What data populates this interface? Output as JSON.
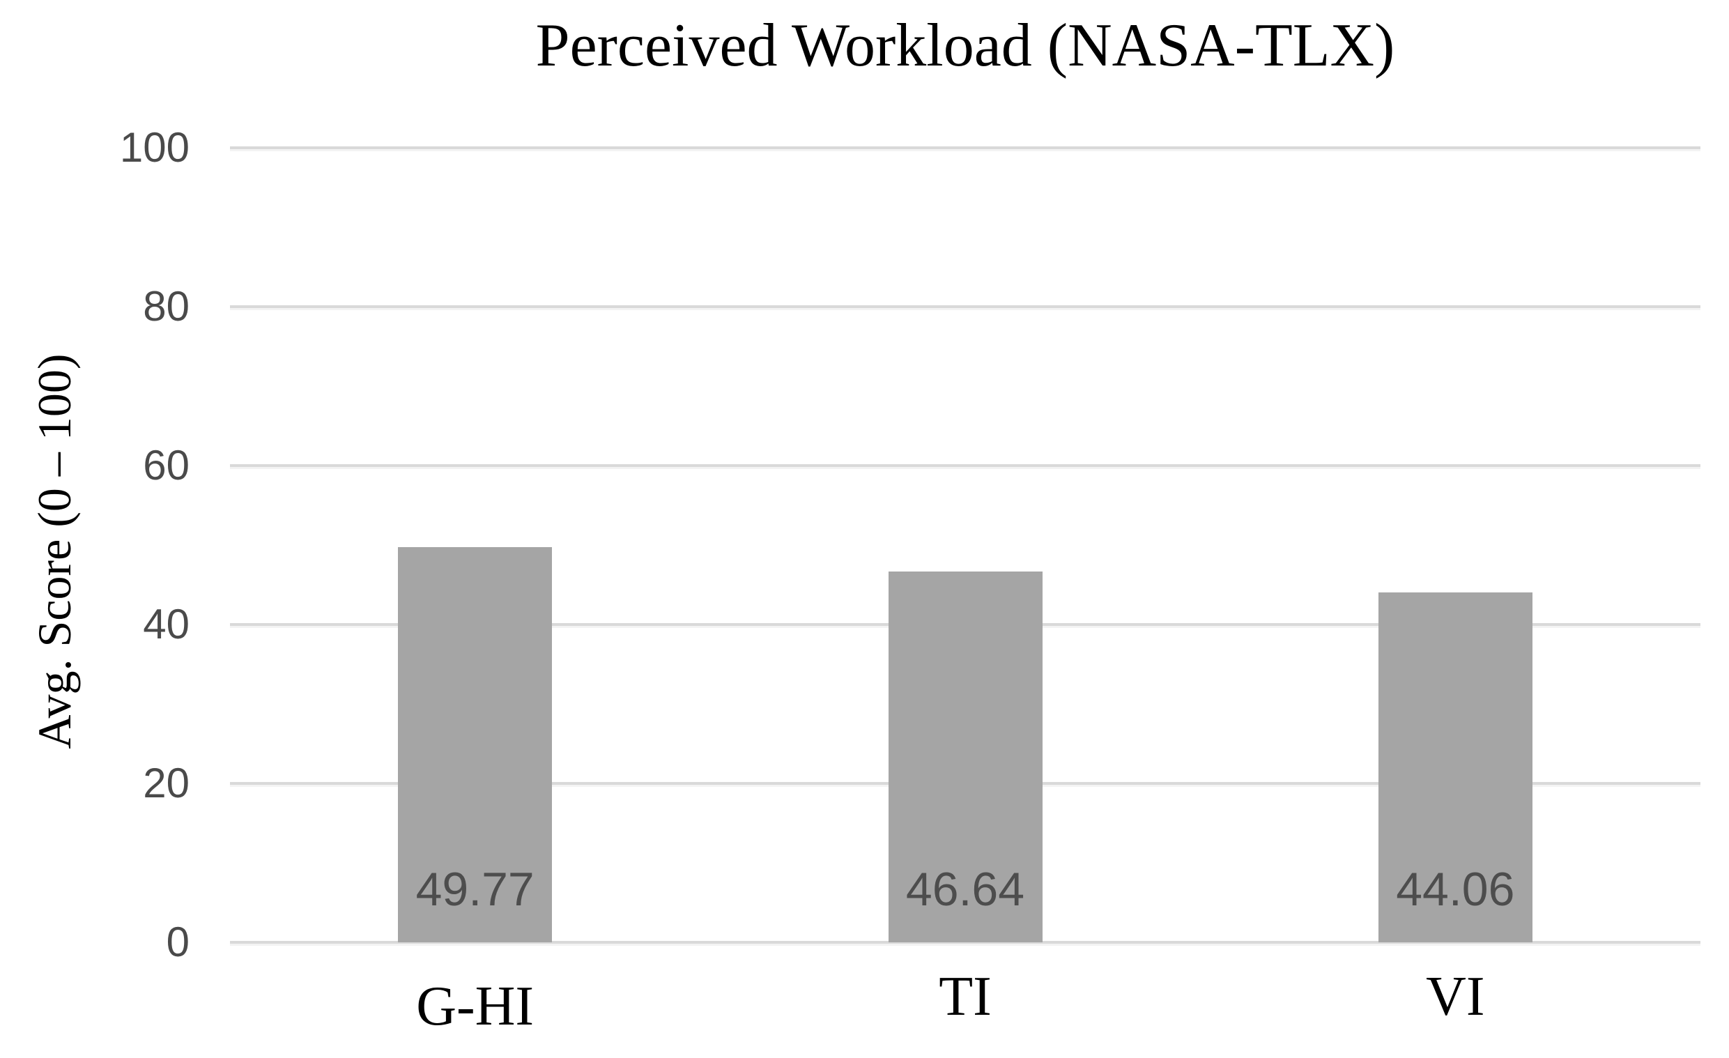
{
  "chart_data": {
    "type": "bar",
    "title": "Perceived Workload (NASA-TLX)",
    "ylabel": "Avg. Score (0 – 100)",
    "xlabel": "",
    "categories": [
      "G-HI",
      "TI",
      "VI"
    ],
    "values": [
      49.77,
      46.64,
      44.06
    ],
    "value_labels": [
      "49.77",
      "46.64",
      "44.06"
    ],
    "yticks": [
      0,
      20,
      40,
      60,
      80,
      100
    ],
    "ylim": [
      0,
      100
    ],
    "grid": "horizontal",
    "legend": "none",
    "colors": {
      "bar_fill": "#a5a5a5",
      "value_label": "#4d4d4d",
      "tick_label": "#4a4a4a",
      "gridline": "#d9d9d9",
      "title_text": "#000000",
      "background": "#ffffff"
    }
  }
}
